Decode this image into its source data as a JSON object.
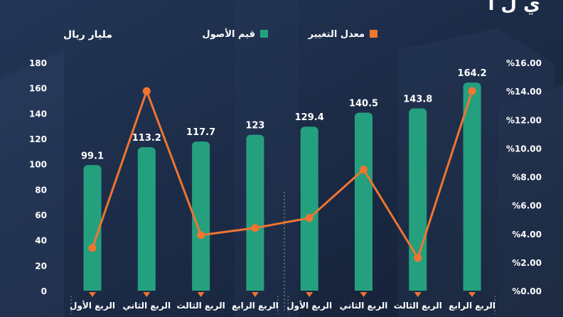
{
  "header": {
    "title_fragment": "ي ل ا"
  },
  "legend": {
    "assets_label": "قيم الأصول",
    "change_label": "معدل التغيير"
  },
  "axes": {
    "left_unit": "مليار ريال",
    "left_ticks": [
      "0",
      "20",
      "40",
      "60",
      "80",
      "100",
      "120",
      "140",
      "160",
      "180"
    ],
    "right_ticks": [
      "%0.00",
      "%2.00",
      "%4.00",
      "%6.00",
      "%8.00",
      "%10.00",
      "%12.00",
      "%14.00",
      "%16.00"
    ]
  },
  "colors": {
    "background": "#1a2740",
    "bar": "#25a07e",
    "bar_top": "#2fb58e",
    "line": "#f07530",
    "text": "#ffffff",
    "dashes": "#8a96aa"
  },
  "chart_data": {
    "type": "bar+line",
    "categories": [
      "الربع الأول",
      "الربع الثاني",
      "الربع الثالث",
      "الربع الرابع",
      "الربع الأول",
      "الربع الثاني",
      "الربع الثالث",
      "الربع الرابع"
    ],
    "series": [
      {
        "name": "قيم الأصول",
        "type": "bar",
        "axis": "left",
        "values": [
          99.1,
          113.2,
          117.7,
          123,
          129.4,
          140.5,
          143.8,
          164.2
        ]
      },
      {
        "name": "معدل التغيير",
        "type": "line",
        "axis": "right",
        "values": [
          3.0,
          14.0,
          3.9,
          4.4,
          5.1,
          8.5,
          2.3,
          14.0
        ]
      }
    ],
    "ylabel": "مليار ريال",
    "ylim": [
      0,
      180
    ],
    "y2lim": [
      0,
      16
    ],
    "grid": false,
    "legend_position": "top"
  }
}
